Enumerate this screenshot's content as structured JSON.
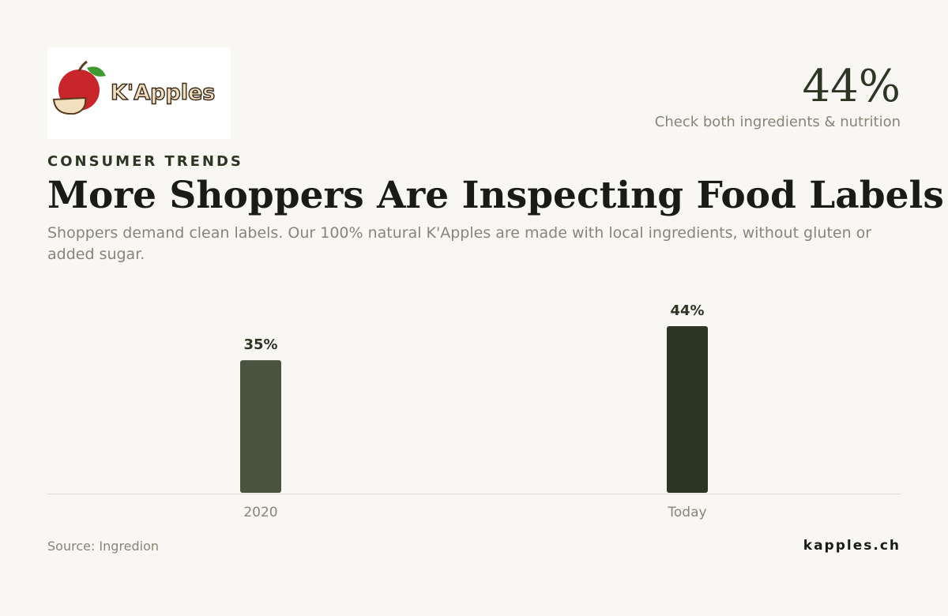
{
  "header": {
    "logo_text": "K'Apples",
    "kpi_value": "44%",
    "kpi_caption": "Check both ingredients & nutrition"
  },
  "chart_data": {
    "type": "bar",
    "eyebrow": "CONSUMER TRENDS",
    "title": "More Shoppers Are Inspecting Food Labels",
    "subtitle": "Shoppers demand clean labels. Our 100% natural K'Apples are made with local ingredients, without gluten or added sugar.",
    "categories": [
      "2020",
      "Today"
    ],
    "values": [
      35,
      44
    ],
    "value_labels": [
      "35%",
      "44%"
    ],
    "colors": [
      "#4a5240",
      "#2d3625"
    ]
  },
  "footer": {
    "source": "Source: Ingredion",
    "site": "kapples.ch"
  }
}
